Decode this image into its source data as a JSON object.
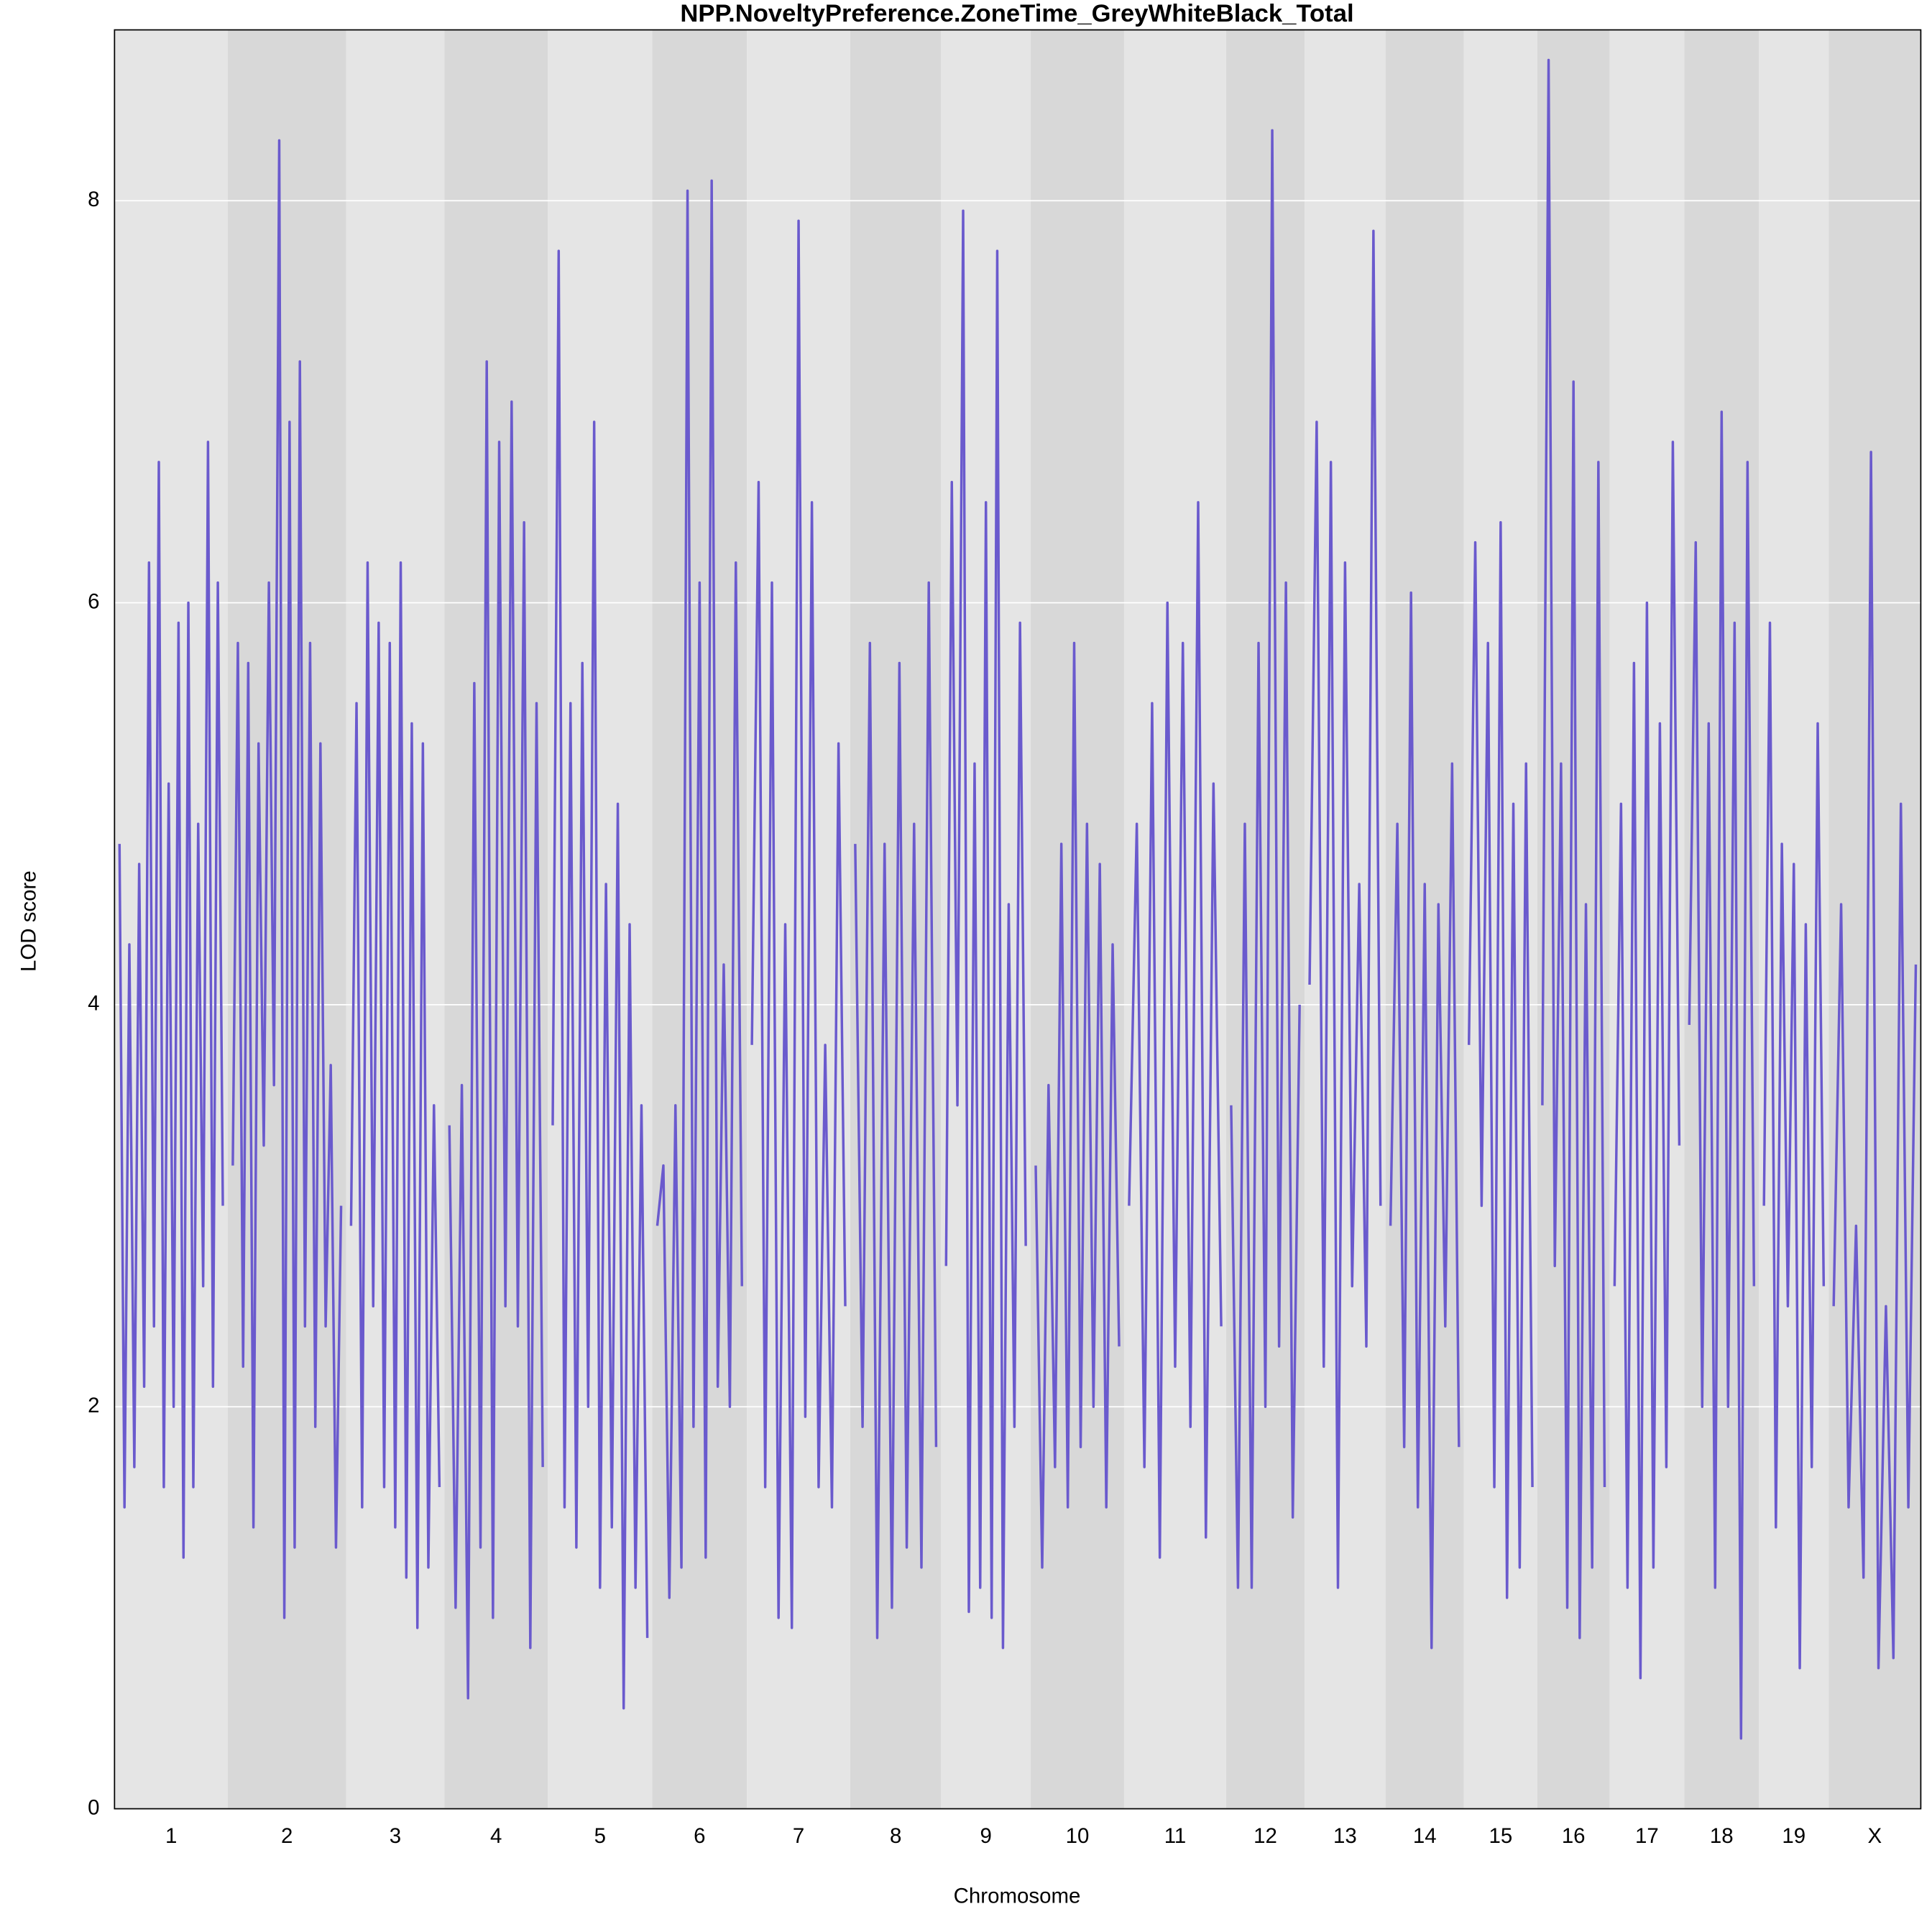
{
  "chart_data": {
    "type": "line",
    "title": "NPP.NoveltyPreference.ZoneTime_GreyWhiteBlack_Total",
    "xlabel": "Chromosome",
    "ylabel": "LOD score",
    "color": "#6a5acd",
    "grid": true,
    "ylim": [
      0,
      8.85
    ],
    "yticks": [
      0,
      2,
      4,
      6,
      8
    ],
    "chromosomes": [
      {
        "name": "1",
        "values": [
          4.8,
          1.5,
          4.3,
          1.7,
          4.7,
          2.1,
          6.2,
          2.4,
          6.7,
          1.6,
          5.1,
          2.0,
          5.9,
          1.25,
          6.0,
          1.6,
          4.9,
          2.6,
          6.8,
          2.1,
          6.1,
          3.0
        ]
      },
      {
        "name": "2",
        "values": [
          3.2,
          5.8,
          2.2,
          5.7,
          1.4,
          5.3,
          3.3,
          6.1,
          3.6,
          8.3,
          0.95,
          6.9,
          1.3,
          7.2,
          2.4,
          5.8,
          1.9,
          5.3,
          2.4,
          3.7,
          1.3,
          3.0
        ]
      },
      {
        "name": "3",
        "values": [
          2.9,
          5.5,
          1.5,
          6.2,
          2.5,
          5.9,
          1.6,
          5.8,
          1.4,
          6.2,
          1.15,
          5.4,
          0.9,
          5.3,
          1.2,
          3.5,
          1.6
        ]
      },
      {
        "name": "4",
        "values": [
          3.4,
          1.0,
          3.6,
          0.55,
          5.6,
          1.3,
          7.2,
          0.95,
          6.8,
          2.5,
          7.0,
          2.4,
          6.4,
          0.8,
          5.5,
          1.7
        ]
      },
      {
        "name": "5",
        "values": [
          3.4,
          7.75,
          1.5,
          5.5,
          1.3,
          5.7,
          2.0,
          6.9,
          1.1,
          4.6,
          1.4,
          5.0,
          0.5,
          4.4,
          1.1,
          3.5,
          0.85
        ]
      },
      {
        "name": "6",
        "values": [
          2.9,
          3.2,
          1.05,
          3.5,
          1.2,
          8.05,
          1.9,
          6.1,
          1.25,
          8.1,
          2.1,
          4.2,
          2.0,
          6.2,
          2.6
        ]
      },
      {
        "name": "7",
        "values": [
          3.8,
          6.6,
          1.6,
          6.1,
          0.95,
          4.4,
          0.9,
          7.9,
          1.95,
          6.5,
          1.6,
          3.8,
          1.5,
          5.3,
          2.5
        ]
      },
      {
        "name": "8",
        "values": [
          4.8,
          1.9,
          5.8,
          0.85,
          4.8,
          1.0,
          5.7,
          1.3,
          4.9,
          1.2,
          6.1,
          1.8
        ]
      },
      {
        "name": "9",
        "values": [
          2.7,
          6.6,
          3.5,
          7.95,
          0.98,
          5.2,
          1.1,
          6.5,
          0.95,
          7.75,
          0.8,
          4.5,
          1.9,
          5.9,
          2.8
        ]
      },
      {
        "name": "10",
        "values": [
          3.2,
          1.2,
          3.6,
          1.7,
          4.8,
          1.5,
          5.8,
          1.8,
          4.9,
          2.0,
          4.7,
          1.5,
          4.3,
          2.3
        ]
      },
      {
        "name": "11",
        "values": [
          3.0,
          4.9,
          1.7,
          5.5,
          1.25,
          6.0,
          2.2,
          5.8,
          1.9,
          6.5,
          1.35,
          5.1,
          2.4
        ]
      },
      {
        "name": "12",
        "values": [
          3.5,
          1.1,
          4.9,
          1.1,
          5.8,
          2.0,
          8.35,
          2.3,
          6.1,
          1.45,
          4.0
        ]
      },
      {
        "name": "13",
        "values": [
          4.1,
          6.9,
          2.2,
          6.7,
          1.1,
          6.2,
          2.6,
          4.6,
          2.3,
          7.85,
          3.0
        ]
      },
      {
        "name": "14",
        "values": [
          2.9,
          4.9,
          1.8,
          6.05,
          1.5,
          4.6,
          0.8,
          4.5,
          2.4,
          5.2,
          1.8
        ]
      },
      {
        "name": "15",
        "values": [
          3.8,
          6.3,
          3.0,
          5.8,
          1.6,
          6.4,
          1.05,
          5.0,
          1.2,
          5.2,
          1.6
        ]
      },
      {
        "name": "16",
        "values": [
          3.5,
          8.7,
          2.7,
          5.2,
          1.0,
          7.1,
          0.85,
          4.5,
          1.2,
          6.7,
          1.6
        ]
      },
      {
        "name": "17",
        "values": [
          2.6,
          5.0,
          1.1,
          5.7,
          0.65,
          6.0,
          1.2,
          5.4,
          1.7,
          6.8,
          3.3
        ]
      },
      {
        "name": "18",
        "values": [
          3.9,
          6.3,
          2.0,
          5.4,
          1.1,
          6.95,
          2.0,
          5.9,
          0.35,
          6.7,
          2.6
        ]
      },
      {
        "name": "19",
        "values": [
          3.0,
          5.9,
          1.4,
          4.8,
          2.5,
          4.7,
          0.7,
          4.4,
          1.7,
          5.4,
          2.6
        ]
      },
      {
        "name": "X",
        "values": [
          2.5,
          4.5,
          1.5,
          2.9,
          1.15,
          6.75,
          0.7,
          2.5,
          0.75,
          5.0,
          1.5,
          4.2
        ]
      }
    ]
  }
}
